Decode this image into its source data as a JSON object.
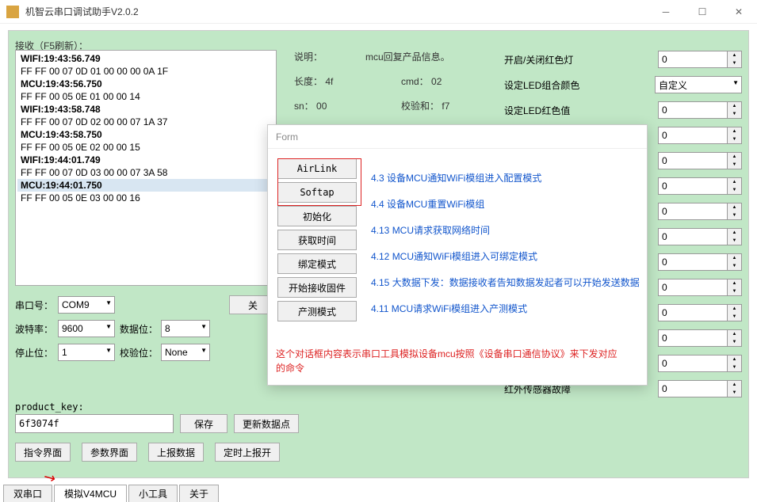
{
  "window": {
    "title": "机智云串口调试助手V2.0.2"
  },
  "recv_label": "接收（F5刷新）：",
  "log_lines": [
    {
      "text": "WIFI:19:43:56.749",
      "cls": "log-wifi"
    },
    {
      "text": "FF FF 00 07 0D 01 00 00 00 0A 1F",
      "cls": "log-data"
    },
    {
      "text": "MCU:19:43:56.750",
      "cls": "log-mcu"
    },
    {
      "text": "FF FF 00 05 0E 01 00 00 14",
      "cls": "log-data"
    },
    {
      "text": "WIFI:19:43:58.748",
      "cls": "log-wifi"
    },
    {
      "text": "FF FF 00 07 0D 02 00 00 07 1A 37",
      "cls": "log-data"
    },
    {
      "text": "MCU:19:43:58.750",
      "cls": "log-mcu"
    },
    {
      "text": "FF FF 00 05 0E 02 00 00 15",
      "cls": "log-data"
    },
    {
      "text": "WIFI:19:44:01.749",
      "cls": "log-wifi"
    },
    {
      "text": "FF FF 00 07 0D 03 00 00 07 3A 58",
      "cls": "log-data"
    },
    {
      "text": "MCU:19:44:01.750",
      "cls": "log-mcu log-highlight"
    },
    {
      "text": "FF FF 00 05 0E 03 00 00 16",
      "cls": "log-data"
    }
  ],
  "info": {
    "label_desc": "说明：",
    "desc_text": "mcu回复产品信息。",
    "label_len": "长度：",
    "len_val": "4f",
    "label_cmd": "cmd：",
    "cmd_val": "02",
    "label_sn": "sn：",
    "sn_val": "00",
    "label_chk": "校验和：",
    "chk_val": "f7"
  },
  "params": [
    {
      "label": "开启/关闭红色灯",
      "type": "num",
      "value": "0"
    },
    {
      "label": "设定LED组合颜色",
      "type": "sel",
      "value": "自定义"
    },
    {
      "label": "设定LED红色值",
      "type": "num",
      "value": "0"
    },
    {
      "label": "",
      "type": "num",
      "value": "0"
    },
    {
      "label": "",
      "type": "num",
      "value": "0"
    },
    {
      "label": "",
      "type": "num",
      "value": "0"
    },
    {
      "label": "",
      "type": "num",
      "value": "0"
    },
    {
      "label": "",
      "type": "num",
      "value": "0"
    },
    {
      "label": "",
      "type": "num",
      "value": "0"
    },
    {
      "label": "",
      "type": "num",
      "value": "0"
    },
    {
      "label": "",
      "type": "num",
      "value": "0"
    },
    {
      "label": "",
      "type": "num",
      "value": "0"
    },
    {
      "label": "",
      "type": "num",
      "value": "0"
    },
    {
      "label": "红外传感器故障",
      "type": "num",
      "value": "0"
    }
  ],
  "serial": {
    "label_port": "串口号：",
    "port": "COM9",
    "label_baud": "波特率：",
    "baud": "9600",
    "label_data": "数据位：",
    "data": "8",
    "label_stop": "停止位：",
    "stop": "1",
    "label_parity": "校验位：",
    "parity": "None",
    "btn_open_prefix": "关"
  },
  "pk": {
    "label": "product_key:",
    "value": "6f3074f",
    "btn_save": "保存",
    "btn_update": "更新数据点"
  },
  "bottom": {
    "btn_cmd": "指令界面",
    "btn_param": "参数界面",
    "btn_report": "上报数据",
    "btn_timed": "定时上报开"
  },
  "tabs": [
    "双串口",
    "模拟V4MCU",
    "小工具",
    "关于"
  ],
  "tab_active": 1,
  "form": {
    "title": "Form",
    "buttons": [
      "AirLink",
      "Softap",
      "初始化",
      "获取时间",
      "绑定模式",
      "开始接收固件",
      "产测模式"
    ],
    "links": [
      "4.3 设备MCU通知WiFi模组进入配置模式",
      "4.4 设备MCU重置WiFi模组",
      "4.13 MCU请求获取网络时间",
      "4.12 MCU通知WiFi模组进入可绑定模式",
      "4.15 大数据下发：数据接收者告知数据发起者可以开始发送数据",
      "4.11 MCU请求WiFi模组进入产测模式"
    ],
    "note": "这个对话框内容表示串口工具模拟设备mcu按照《设备串口通信协议》来下发对应的命令"
  },
  "colors": {
    "panel_bg": "#c1e7c6",
    "link": "#1155cc",
    "red": "#dd2222"
  }
}
